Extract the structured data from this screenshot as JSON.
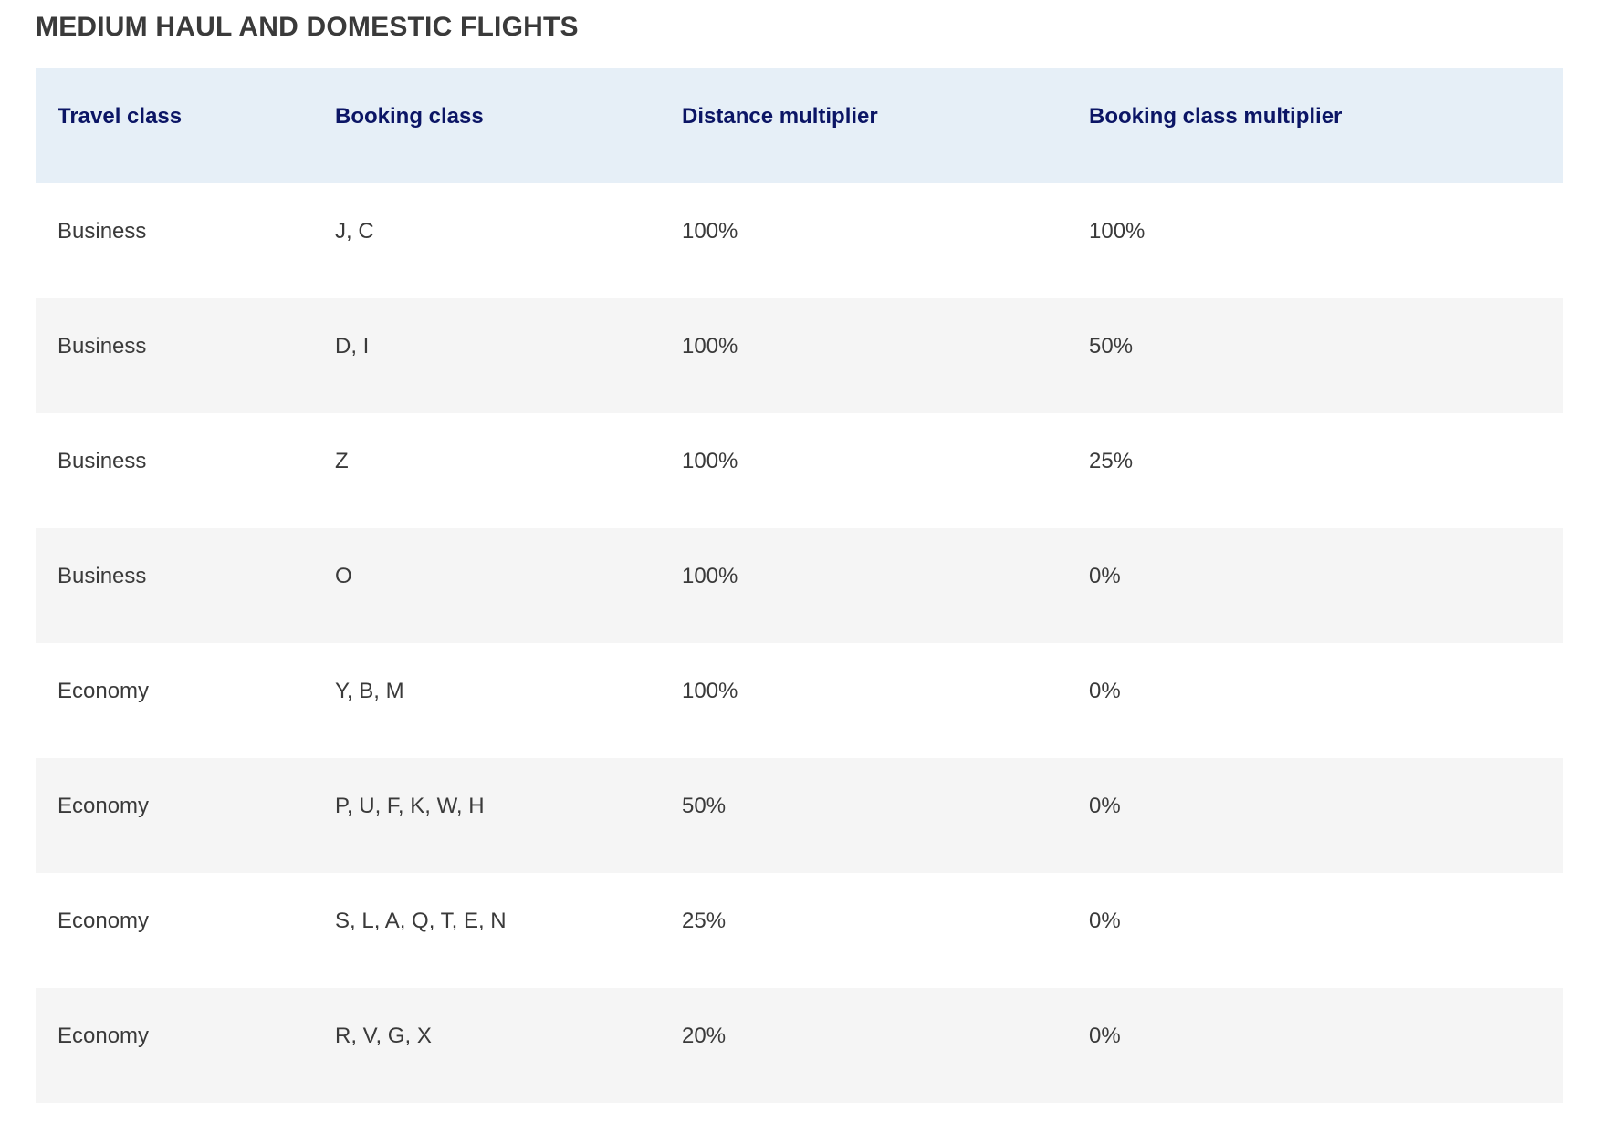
{
  "page": {
    "title": "MEDIUM HAUL AND DOMESTIC FLIGHTS"
  },
  "table": {
    "headers": {
      "travel_class": "Travel class",
      "booking_class": "Booking class",
      "distance_multiplier": "Distance multiplier",
      "booking_class_multiplier": "Booking class multiplier"
    },
    "rows": [
      {
        "travel_class": "Business",
        "booking_class": "J, C",
        "distance_multiplier": "100%",
        "booking_class_multiplier": "100%"
      },
      {
        "travel_class": "Business",
        "booking_class": "D, I",
        "distance_multiplier": "100%",
        "booking_class_multiplier": "50%"
      },
      {
        "travel_class": "Business",
        "booking_class": "Z",
        "distance_multiplier": "100%",
        "booking_class_multiplier": "25%"
      },
      {
        "travel_class": "Business",
        "booking_class": "O",
        "distance_multiplier": "100%",
        "booking_class_multiplier": "0%"
      },
      {
        "travel_class": "Economy",
        "booking_class": "Y, B, M",
        "distance_multiplier": "100%",
        "booking_class_multiplier": "0%"
      },
      {
        "travel_class": "Economy",
        "booking_class": "P, U, F, K, W, H",
        "distance_multiplier": "50%",
        "booking_class_multiplier": "0%"
      },
      {
        "travel_class": "Economy",
        "booking_class": "S, L, A, Q, T, E, N",
        "distance_multiplier": "25%",
        "booking_class_multiplier": "0%"
      },
      {
        "travel_class": "Economy",
        "booking_class": "R, V, G, X",
        "distance_multiplier": "20%",
        "booking_class_multiplier": "0%"
      }
    ]
  },
  "colors": {
    "header_background": "#e6eff7",
    "header_text": "#0b1565",
    "row_alt_background": "#f5f5f5",
    "body_text": "#3a3a3a"
  }
}
